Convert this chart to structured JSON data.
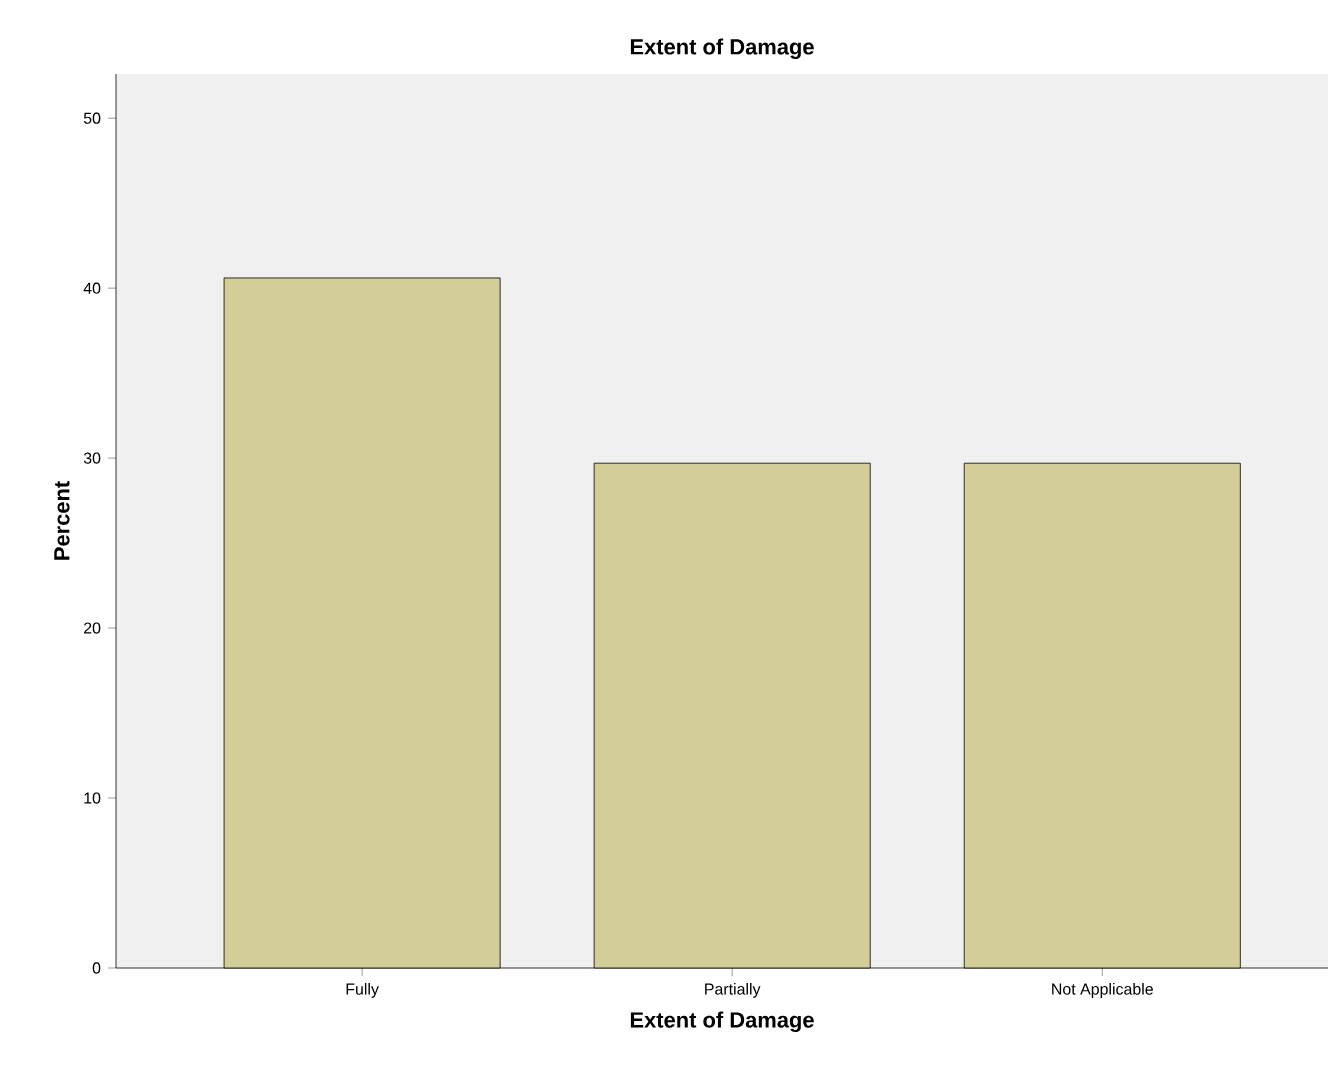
{
  "chart_data": {
    "type": "bar",
    "title": "Extent of Damage",
    "xlabel": "Extent of Damage",
    "ylabel": "Percent",
    "categories": [
      "Fully",
      "Partially",
      "Not Applicable"
    ],
    "values": [
      40.6,
      29.7,
      29.7
    ],
    "color": "#d3ce97",
    "ylim": [
      0,
      52.6
    ],
    "yticks": [
      0,
      10,
      20,
      30,
      40,
      50
    ],
    "grid": false
  }
}
